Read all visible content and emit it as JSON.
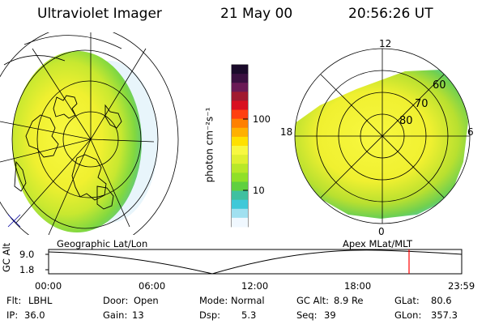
{
  "header": {
    "instrument": "Ultraviolet Imager",
    "date": "21 May 00",
    "time": "20:56:26 UT"
  },
  "colorbar": {
    "unit_label": "photon cm⁻²s⁻¹",
    "ticks": [
      "100",
      "10"
    ],
    "colors": [
      "#1a0a2a",
      "#3a1040",
      "#6a1a55",
      "#a01a30",
      "#d81020",
      "#ff4010",
      "#ff8000",
      "#ffb000",
      "#ffe000",
      "#f8f840",
      "#e0f030",
      "#b8e828",
      "#90e028",
      "#60d040",
      "#40c0a0",
      "#40c8d8",
      "#a0e0f0",
      "#f0f8ff"
    ]
  },
  "left_map": {
    "label": "Geographic Lat/Lon"
  },
  "right_map": {
    "label": "Apex MLat/MLT",
    "mlt_labels": [
      "12",
      "18",
      "6",
      "0"
    ],
    "mlat_labels": [
      "60",
      "70",
      "80"
    ]
  },
  "altitude_plot": {
    "axis_label": "GC Alt",
    "ytick_top": "9.0",
    "ytick_bottom": "1.8",
    "x_ticks": [
      "00:00",
      "06:00",
      "12:00",
      "18:00",
      "23:59"
    ],
    "marker_color": "#ff0000"
  },
  "status": {
    "flt_label": "Flt:",
    "flt_value": "LBHL",
    "ip_label": "IP:",
    "ip_value": "36.0",
    "door_label": "Door:",
    "door_value": "Open",
    "gain_label": "Gain:",
    "gain_value": "13",
    "mode_label": "Mode:",
    "mode_value": "Normal",
    "dsp_label": "Dsp:",
    "dsp_value": "5.3",
    "gcalt_label": "GC Alt:",
    "gcalt_value": "8.9 Re",
    "seq_label": "Seq:",
    "seq_value": "39",
    "glat_label": "GLat:",
    "glat_value": "80.6",
    "glon_label": "GLon:",
    "glon_value": "357.3"
  }
}
